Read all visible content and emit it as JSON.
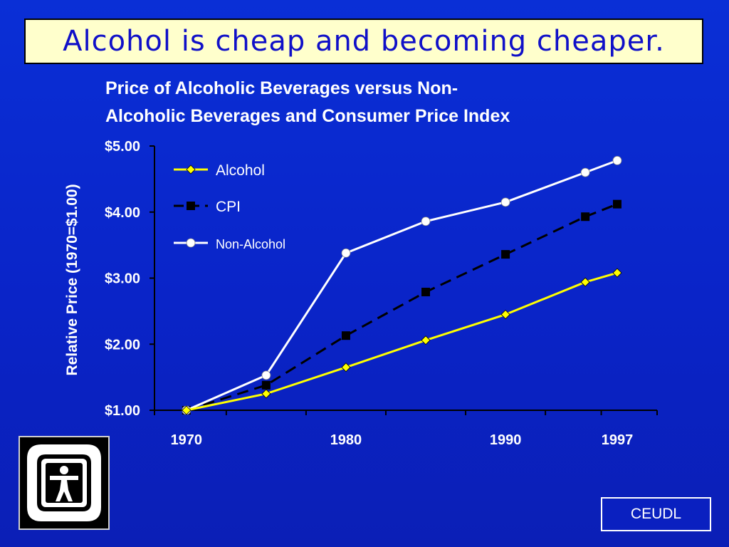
{
  "slide_title": "Alcohol is cheap and becoming cheaper.",
  "footer_label": "CEUDL",
  "logo_icon": "person-in-frame-logo",
  "colors": {
    "background": "#0a24c8",
    "title_box": "#ffffcc",
    "title_text": "#1010c8",
    "alcohol": "#ffff00",
    "cpi": "#000000",
    "non_alcohol": "#ffffff"
  },
  "chart_data": {
    "type": "line",
    "title_lines": [
      "Price of Alcoholic Beverages versus Non-",
      "Alcoholic Beverages and Consumer Price Index"
    ],
    "ylabel": "Relative Price (1970=$1.00)",
    "xlabel": "",
    "x": [
      1970,
      1975,
      1980,
      1985,
      1990,
      1995,
      1997
    ],
    "x_tick_labels": [
      "1970",
      "1980",
      "1990",
      "1997"
    ],
    "y_tick_labels": [
      "$1.00",
      "$2.00",
      "$3.00",
      "$4.00",
      "$5.00"
    ],
    "ylim": [
      1,
      5
    ],
    "grid": false,
    "legend_position": "top-left",
    "series": [
      {
        "name": "Alcohol",
        "marker": "diamond",
        "style": "solid",
        "color": "#ffff00",
        "values": [
          1.0,
          1.25,
          1.65,
          2.06,
          2.45,
          2.94,
          3.08
        ]
      },
      {
        "name": "CPI",
        "marker": "square",
        "style": "dashed",
        "color": "#000000",
        "values": [
          1.0,
          1.38,
          2.13,
          2.79,
          3.36,
          3.93,
          4.12
        ]
      },
      {
        "name": "Non-Alcohol",
        "marker": "circle",
        "style": "solid",
        "color": "#ffffff",
        "values": [
          1.0,
          1.53,
          3.38,
          3.86,
          4.15,
          4.6,
          4.78
        ]
      }
    ]
  }
}
